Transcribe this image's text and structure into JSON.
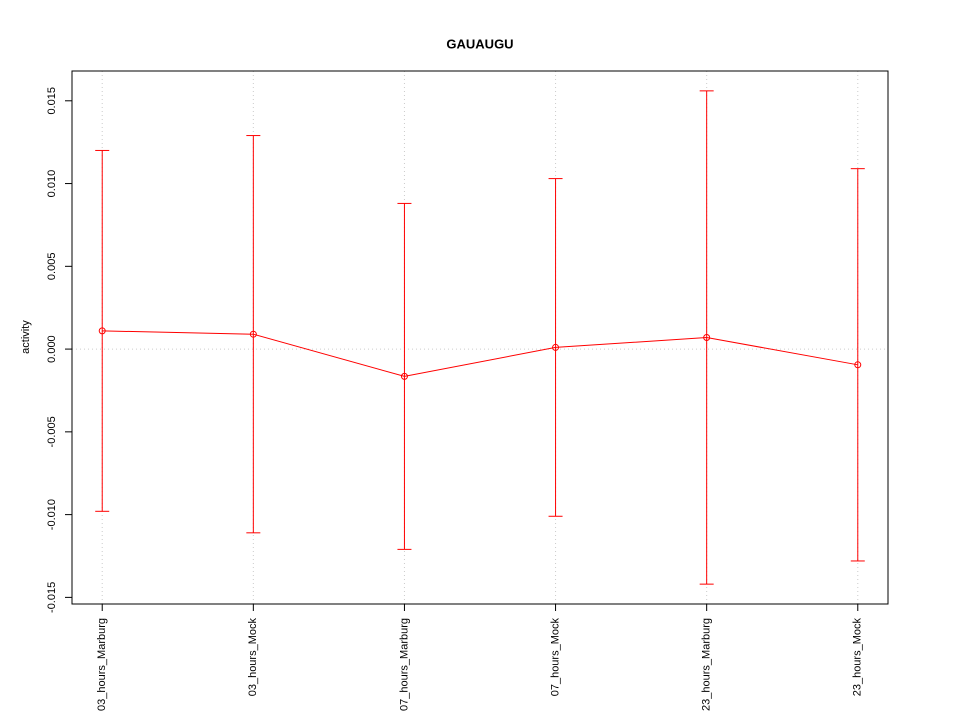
{
  "chart_data": {
    "type": "line",
    "title": "GAUAUGU",
    "y_label": "activity",
    "categories": [
      "03_hours_Marburg",
      "03_hours_Mock",
      "07_hours_Marburg",
      "07_hours_Mock",
      "23_hours_Marburg",
      "23_hours_Mock"
    ],
    "series": [
      {
        "name": "activity",
        "color": "#ff0000",
        "values": [
          0.0011,
          0.0009,
          -0.00165,
          0.0001,
          0.0007,
          -0.00095
        ],
        "errors": [
          0.0109,
          0.012,
          0.01045,
          0.0102,
          0.0149,
          0.01185
        ]
      }
    ],
    "ylim": [
      -0.0154,
      0.0168
    ],
    "yticks": [
      0.015,
      {
        "value": 0.01,
        "label": "0.010"
      },
      0.005,
      {
        "value": 0,
        "label": "0.000"
      },
      -0.005,
      {
        "value": -0.01,
        "label": "-0.010"
      },
      -0.015
    ],
    "reference_line": 0,
    "grid": true
  }
}
